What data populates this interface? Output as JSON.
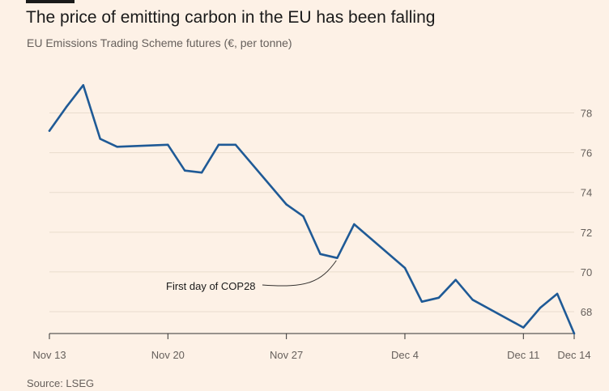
{
  "header": {
    "title": "The price of emitting carbon in the EU has been falling",
    "subtitle": "EU Emissions Trading Scheme futures (€, per tonne)"
  },
  "footer": {
    "source": "Source: LSEG"
  },
  "colors": {
    "background": "#fdf1e6",
    "line": "#1f5a96",
    "grid": "#e9dccd",
    "axis": "#333333",
    "text": "#66605c"
  },
  "chart_data": {
    "type": "line",
    "title": "The price of emitting carbon in the EU has been falling",
    "subtitle": "EU Emissions Trading Scheme futures (€, per tonne)",
    "xlabel": "",
    "ylabel": "",
    "x": [
      "2023-11-13",
      "2023-11-14",
      "2023-11-15",
      "2023-11-16",
      "2023-11-17",
      "2023-11-20",
      "2023-11-21",
      "2023-11-22",
      "2023-11-23",
      "2023-11-24",
      "2023-11-27",
      "2023-11-28",
      "2023-11-29",
      "2023-11-30",
      "2023-12-01",
      "2023-12-04",
      "2023-12-05",
      "2023-12-06",
      "2023-12-07",
      "2023-12-08",
      "2023-12-11",
      "2023-12-12",
      "2023-12-13",
      "2023-12-14"
    ],
    "x_tick_labels": [
      "Nov 13",
      "Nov 20",
      "Nov 27",
      "Dec 4",
      "Dec 11",
      "Dec 14"
    ],
    "x_tick_dates": [
      "2023-11-13",
      "2023-11-20",
      "2023-11-27",
      "2023-12-04",
      "2023-12-11",
      "2023-12-14"
    ],
    "series": [
      {
        "values": [
          77.1,
          78.3,
          79.4,
          76.7,
          76.3,
          76.4,
          75.1,
          75.0,
          76.4,
          76.4,
          73.4,
          72.8,
          70.9,
          70.7,
          72.4,
          70.2,
          68.5,
          68.7,
          69.6,
          68.6,
          67.2,
          68.2,
          68.9,
          66.9
        ]
      }
    ],
    "y_ticks": [
      68,
      70,
      72,
      74,
      76,
      78
    ],
    "ylim": [
      66.9,
      80.1
    ],
    "grid": true,
    "y_axis_side": "right",
    "annotations": [
      {
        "text": "First day of COP28",
        "x": "2023-11-30"
      }
    ]
  }
}
